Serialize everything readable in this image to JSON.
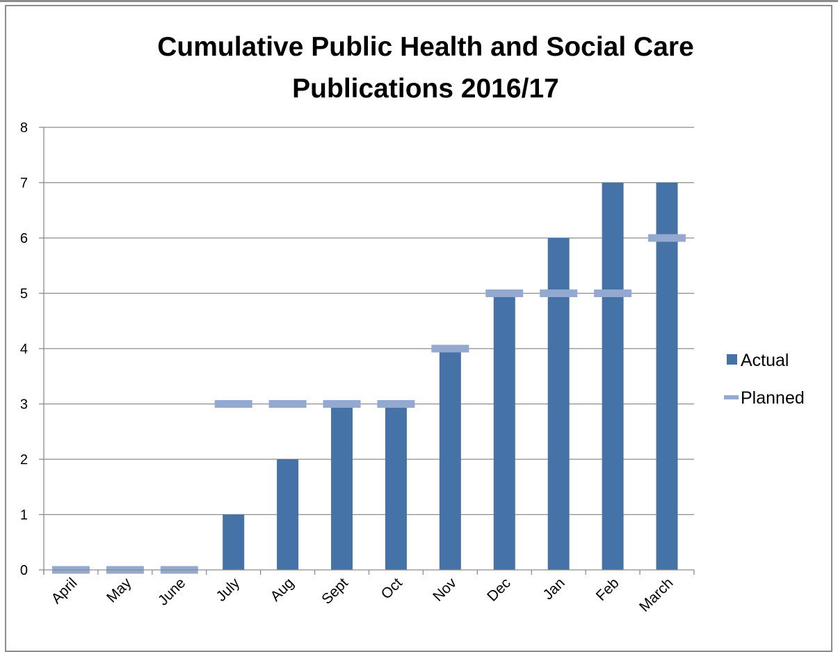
{
  "chart_data": {
    "type": "bar",
    "title_lines": [
      "Cumulative Public Health and Social Care",
      "Publications 2016/17"
    ],
    "categories": [
      "April",
      "May",
      "June",
      "July",
      "Aug",
      "Sept",
      "Oct",
      "Nov",
      "Dec",
      "Jan",
      "Feb",
      "March"
    ],
    "series": [
      {
        "name": "Actual",
        "kind": "bar",
        "color": "#4572a7",
        "values": [
          0,
          0,
          0,
          1,
          2,
          3,
          3,
          4,
          5,
          6,
          7,
          7
        ]
      },
      {
        "name": "Planned",
        "kind": "marker",
        "color": "#93a9cf",
        "values": [
          0,
          0,
          0,
          3,
          3,
          3,
          3,
          4,
          5,
          5,
          5,
          6
        ]
      }
    ],
    "ylim": [
      0,
      8
    ],
    "yticks": [
      0,
      1,
      2,
      3,
      4,
      5,
      6,
      7,
      8
    ],
    "grid": true,
    "legend_position": "right",
    "xlabel": "",
    "ylabel": ""
  }
}
